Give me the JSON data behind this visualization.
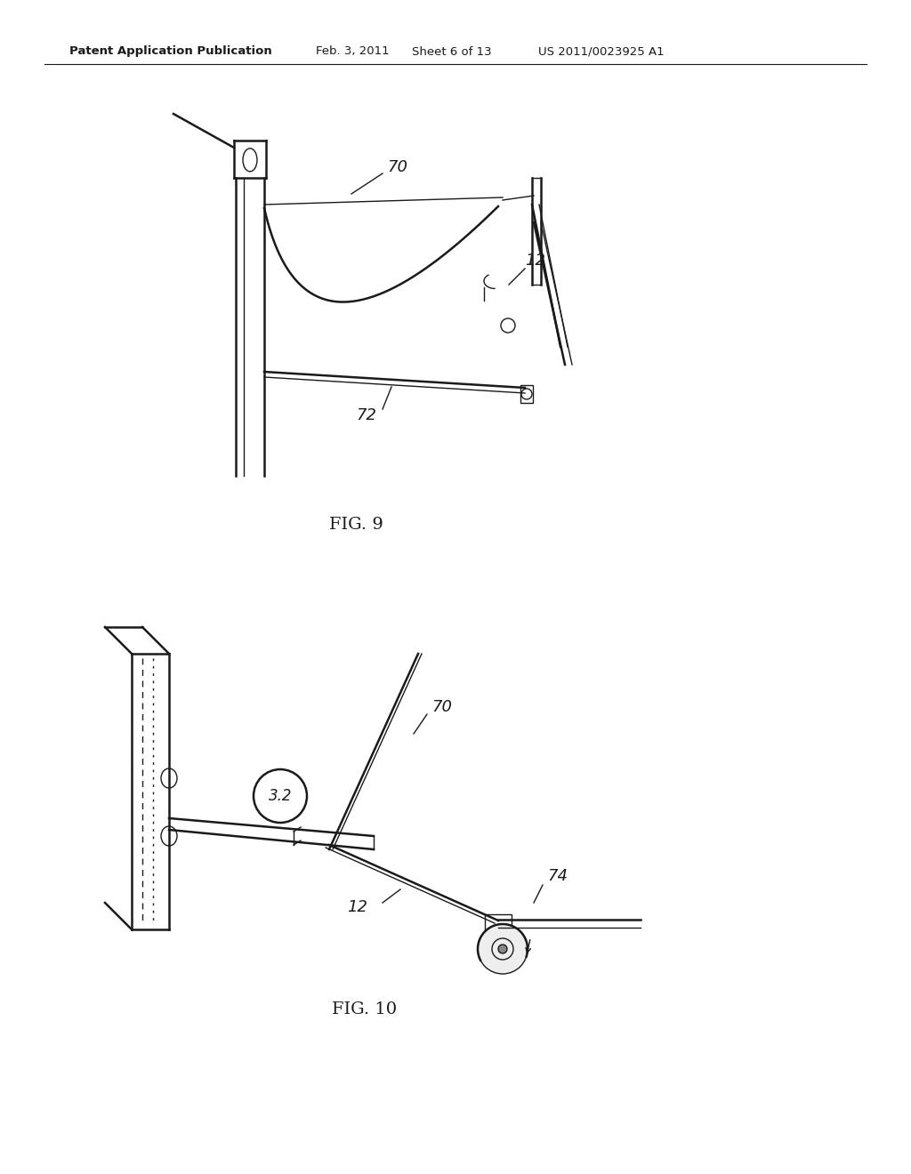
{
  "bg_color": "#ffffff",
  "header_text": "Patent Application Publication",
  "header_date": "Feb. 3, 2011",
  "header_sheet": "Sheet 6 of 13",
  "header_patent": "US 2011/0023925 A1",
  "fig9_label": "FIG. 9",
  "fig10_label": "FIG. 10",
  "label_70_fig9": "70",
  "label_12_fig9": "12",
  "label_72_fig9": "72",
  "label_32_fig10": "3.2",
  "label_70_fig10": "70",
  "label_74_fig10": "74",
  "label_12_fig10": "12"
}
